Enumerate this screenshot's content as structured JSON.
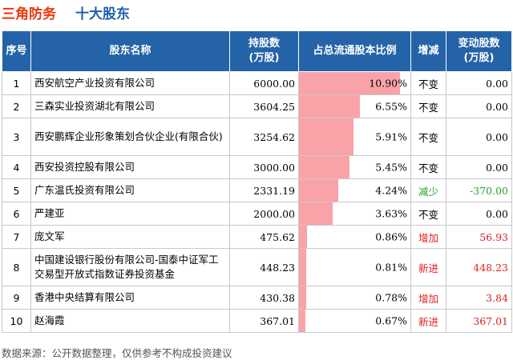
{
  "title": {
    "company": "三角防务",
    "subtitle": "十大股东"
  },
  "headers": {
    "index": "序号",
    "name": "股东名称",
    "shares": "持股数\n(万股)",
    "ratio": "占总流通股本比例",
    "change": "增减",
    "delta": "变动股数\n(万股)"
  },
  "rows": [
    {
      "index": "1",
      "name": "西安航空产业投资有限公司",
      "shares": "6000.00",
      "ratio": "10.90%",
      "ratio_value": 10.9,
      "change": "不变",
      "delta": "0.00",
      "trend": "same"
    },
    {
      "index": "2",
      "name": "三森实业投资湖北有限公司",
      "shares": "3604.25",
      "ratio": "6.55%",
      "ratio_value": 6.55,
      "change": "不变",
      "delta": "0.00",
      "trend": "same"
    },
    {
      "index": "3",
      "name": "西安鹏辉企业形象策划合伙企业(有限合伙)",
      "shares": "3254.62",
      "ratio": "5.91%",
      "ratio_value": 5.91,
      "change": "不变",
      "delta": "0.00",
      "trend": "same"
    },
    {
      "index": "4",
      "name": "西安投资控股有限公司",
      "shares": "3000.00",
      "ratio": "5.45%",
      "ratio_value": 5.45,
      "change": "不变",
      "delta": "0.00",
      "trend": "same"
    },
    {
      "index": "5",
      "name": "广东温氏投资有限公司",
      "shares": "2331.19",
      "ratio": "4.24%",
      "ratio_value": 4.24,
      "change": "减少",
      "delta": "-370.00",
      "trend": "down"
    },
    {
      "index": "6",
      "name": "严建亚",
      "shares": "2000.00",
      "ratio": "3.63%",
      "ratio_value": 3.63,
      "change": "不变",
      "delta": "0.00",
      "trend": "same"
    },
    {
      "index": "7",
      "name": "庞文军",
      "shares": "475.62",
      "ratio": "0.86%",
      "ratio_value": 0.86,
      "change": "增加",
      "delta": "56.93",
      "trend": "up"
    },
    {
      "index": "8",
      "name": "中国建设银行股份有限公司-国泰中证军工交易型开放式指数证券投资基金",
      "shares": "448.23",
      "ratio": "0.81%",
      "ratio_value": 0.81,
      "change": "新进",
      "delta": "448.23",
      "trend": "up"
    },
    {
      "index": "9",
      "name": "香港中央结算有限公司",
      "shares": "430.38",
      "ratio": "0.78%",
      "ratio_value": 0.78,
      "change": "增加",
      "delta": "3.84",
      "trend": "up"
    },
    {
      "index": "10",
      "name": "赵海霞",
      "shares": "367.01",
      "ratio": "0.67%",
      "ratio_value": 0.67,
      "change": "新进",
      "delta": "367.01",
      "trend": "up"
    }
  ],
  "ratio_max": 12.0,
  "colors": {
    "header_bg": "#2563a8",
    "bar": "#f9a3a8",
    "up": "#e02020",
    "down": "#2ca02c",
    "title_company": "#e8380d",
    "title_sub": "#1f5fa8"
  },
  "footer": "数据来源：公开数据整理，仅供参考不构成投资建议"
}
